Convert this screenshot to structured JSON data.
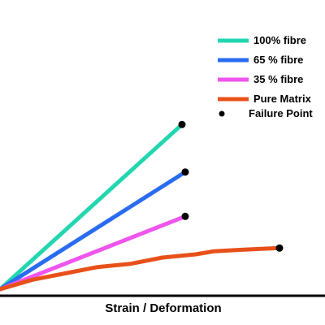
{
  "chart_data": {
    "type": "line",
    "xlabel": "Strain / Deformation",
    "ylabel": "",
    "grid": false,
    "legend_placement": "top-right",
    "series": [
      {
        "name": "100% fibre",
        "color": "#22d6b0",
        "marker_end": true,
        "points": [
          [
            0,
            0
          ],
          [
            56,
            52
          ]
        ]
      },
      {
        "name": "65 % fibre",
        "color": "#2a6cf0",
        "marker_end": true,
        "points": [
          [
            0,
            0
          ],
          [
            57,
            37
          ]
        ]
      },
      {
        "name": "35 % fibre",
        "color": "#ee55ee",
        "marker_end": true,
        "points": [
          [
            0,
            0
          ],
          [
            57,
            23
          ]
        ]
      },
      {
        "name": "Pure Matrix",
        "color": "#e8501a",
        "marker_end": true,
        "points": [
          [
            0,
            0
          ],
          [
            10,
            3
          ],
          [
            20,
            5
          ],
          [
            30,
            7
          ],
          [
            40,
            8
          ],
          [
            50,
            10
          ],
          [
            60,
            11
          ],
          [
            66,
            12
          ],
          [
            75,
            12.5
          ],
          [
            86,
            13
          ]
        ]
      }
    ],
    "failure_point": {
      "name": "Failure Point",
      "color": "#000000"
    }
  }
}
